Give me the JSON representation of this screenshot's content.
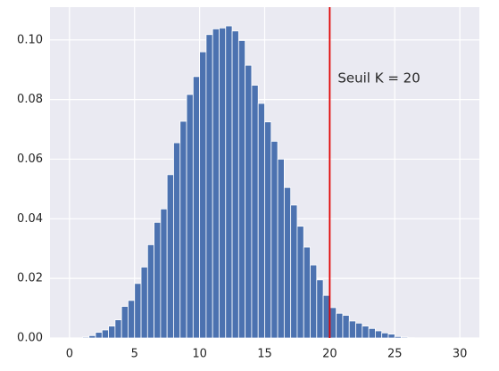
{
  "chart_data": {
    "type": "histogram",
    "bins": [
      0,
      0.5,
      1,
      1.5,
      2,
      2.5,
      3,
      3.5,
      4,
      4.5,
      5,
      5.5,
      6,
      6.5,
      7,
      7.5,
      8,
      8.5,
      9,
      9.5,
      10,
      10.5,
      11,
      11.5,
      12,
      12.5,
      13,
      13.5,
      14,
      14.5,
      15,
      15.5,
      16,
      16.5,
      17,
      17.5,
      18,
      18.5,
      19,
      19.5,
      20,
      20.5,
      21,
      21.5,
      22,
      22.5,
      23,
      23.5,
      24,
      24.5,
      25,
      25.5,
      26,
      26.5,
      27,
      27.5,
      28,
      28.5,
      29,
      29.5,
      30
    ],
    "values": [
      0,
      0,
      0.0003,
      0.0008,
      0.0019,
      0.0027,
      0.004,
      0.0061,
      0.0106,
      0.0126,
      0.0183,
      0.0238,
      0.0313,
      0.0388,
      0.0433,
      0.0548,
      0.0655,
      0.0727,
      0.0817,
      0.0877,
      0.096,
      0.1018,
      0.1037,
      0.104,
      0.1047,
      0.103,
      0.0998,
      0.0915,
      0.0848,
      0.0787,
      0.0725,
      0.066,
      0.06,
      0.0505,
      0.0446,
      0.0375,
      0.0305,
      0.0245,
      0.0195,
      0.0143,
      0.0102,
      0.0083,
      0.0076,
      0.0057,
      0.005,
      0.004,
      0.0032,
      0.0024,
      0.0017,
      0.0013,
      0.0005,
      0.0003,
      0.0001,
      0,
      0,
      0,
      0,
      0,
      0,
      0
    ],
    "color": "#4c72b0",
    "threshold": 20,
    "threshold_color": "#e00000",
    "annotation": "Seuil K = 20",
    "xlim": [
      -1.5,
      31.5
    ],
    "xticks": [
      0,
      5,
      10,
      15,
      20,
      25,
      30
    ],
    "ylim": [
      0,
      0.111
    ],
    "yticks": [
      {
        "value": 0,
        "label": "0.00"
      },
      {
        "value": 0.02,
        "label": "0.02"
      },
      {
        "value": 0.04,
        "label": "0.04"
      },
      {
        "value": 0.06,
        "label": "0.06"
      },
      {
        "value": 0.08,
        "label": "0.08"
      },
      {
        "value": 0.1,
        "label": "0.10"
      }
    ],
    "grid": true
  }
}
